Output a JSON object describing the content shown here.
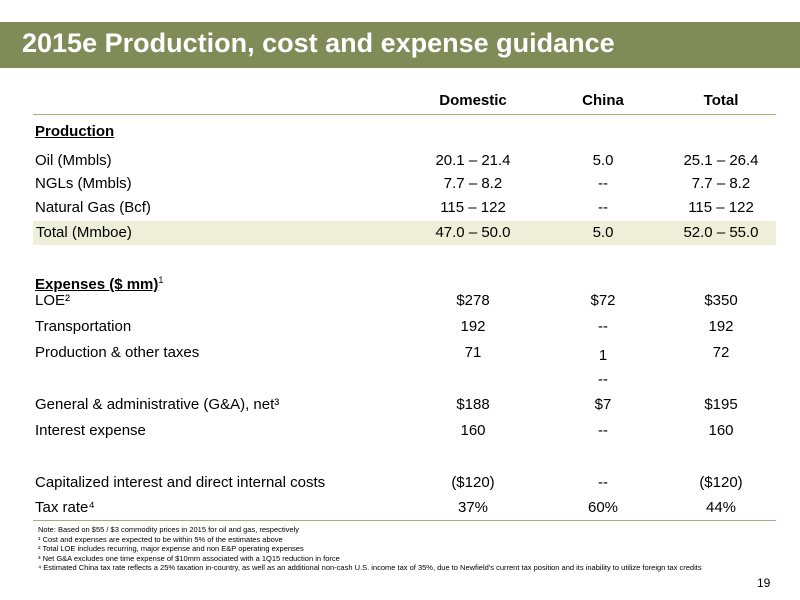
{
  "title": "2015e Production, cost and expense guidance",
  "columns": [
    "Domestic",
    "China",
    "Total"
  ],
  "production": {
    "heading": "Production",
    "rows": [
      {
        "label": "Oil (Mmbls)",
        "domestic": "20.1 – 21.4",
        "china": "5.0",
        "total": "25.1 – 26.4"
      },
      {
        "label": "NGLs (Mmbls)",
        "domestic": "7.7 – 8.2",
        "china": "--",
        "total": "7.7 – 8.2"
      },
      {
        "label": "Natural Gas (Bcf)",
        "domestic": "115 – 122",
        "china": "--",
        "total": "115 – 122"
      },
      {
        "label": "Total (Mmboe)",
        "domestic": "47.0 – 50.0",
        "china": "5.0",
        "total": "52.0 – 55.0"
      }
    ]
  },
  "expenses": {
    "heading": "Expenses ($ mm)",
    "heading_sup": "1",
    "rows": [
      {
        "label": "LOE²",
        "domestic": "$278",
        "china": "$72",
        "total": "$350"
      },
      {
        "label": "Transportation",
        "domestic": "192",
        "china": "--",
        "total": "192"
      },
      {
        "label": "Production & other taxes",
        "domestic": "71",
        "china": "1",
        "china_extra": "--",
        "total": "72"
      },
      {
        "label": "General & administrative (G&A), net³",
        "domestic": "$188",
        "china": "$7",
        "total": "$195"
      },
      {
        "label": "Interest expense",
        "domestic": "160",
        "china": "--",
        "total": "160"
      },
      {
        "label": "Capitalized interest and direct internal costs",
        "domestic": "($120)",
        "china": "--",
        "total": "($120)"
      },
      {
        "label": "Tax rate⁴",
        "domestic": "37%",
        "china": "60%",
        "total": "44%"
      }
    ]
  },
  "notes": [
    "Note: Based on $55 / $3 commodity prices in 2015 for oil and gas, respectively",
    "¹ Cost and expenses are expected to be within 5% of the estimates above",
    "² Total LOE includes recurring, major expense and non E&P operating expenses",
    "³ Net G&A excludes one time expense of $10mm associated with a 1Q15 reduction in force",
    "⁴ Estimated China tax rate reflects a 25% taxation in-country, as well as an additional non-cash U.S. income tax of 35%, due to Newfield's current tax position and its inability to utilize foreign tax credits"
  ],
  "page_number": "19"
}
